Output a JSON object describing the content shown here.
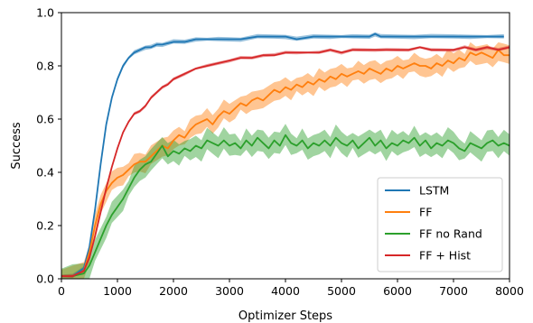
{
  "chart_data": {
    "type": "line",
    "title": "",
    "xlabel": "Optimizer Steps",
    "ylabel": "Success",
    "xlim": [
      0,
      8000
    ],
    "ylim": [
      0,
      1.0
    ],
    "xticks": [
      0,
      1000,
      2000,
      3000,
      4000,
      5000,
      6000,
      7000,
      8000
    ],
    "yticks": [
      0.0,
      0.2,
      0.4,
      0.6,
      0.8,
      1.0
    ],
    "xtick_labels": [
      "0",
      "1000",
      "2000",
      "3000",
      "4000",
      "5000",
      "6000",
      "7000",
      "8000"
    ],
    "ytick_labels": [
      "0.0",
      "0.2",
      "0.4",
      "0.6",
      "0.8",
      "1.0"
    ],
    "grid": false,
    "legend_position": "bottom-right",
    "series": [
      {
        "name": "LSTM",
        "color": "#1f77b4",
        "x": [
          0,
          200,
          400,
          500,
          600,
          700,
          800,
          900,
          1000,
          1100,
          1200,
          1300,
          1400,
          1500,
          1600,
          1700,
          1800,
          2000,
          2200,
          2400,
          2600,
          2800,
          3000,
          3200,
          3500,
          3800,
          4000,
          4200,
          4500,
          4800,
          5000,
          5200,
          5500,
          5600,
          5700,
          6000,
          6300,
          6600,
          7000,
          7300,
          7600,
          7900
        ],
        "y": [
          0.01,
          0.01,
          0.04,
          0.12,
          0.26,
          0.43,
          0.58,
          0.68,
          0.75,
          0.8,
          0.83,
          0.85,
          0.86,
          0.87,
          0.87,
          0.88,
          0.88,
          0.89,
          0.89,
          0.9,
          0.9,
          0.9,
          0.9,
          0.9,
          0.91,
          0.91,
          0.91,
          0.9,
          0.91,
          0.91,
          0.91,
          0.91,
          0.91,
          0.92,
          0.91,
          0.91,
          0.91,
          0.91,
          0.91,
          0.91,
          0.91,
          0.91
        ],
        "band": 0.008
      },
      {
        "name": "FF",
        "color": "#ff7f0e",
        "x": [
          0,
          200,
          400,
          500,
          600,
          700,
          800,
          900,
          1000,
          1100,
          1200,
          1300,
          1400,
          1500,
          1600,
          1700,
          1800,
          1900,
          2000,
          2100,
          2200,
          2300,
          2400,
          2500,
          2600,
          2700,
          2800,
          2900,
          3000,
          3100,
          3200,
          3300,
          3400,
          3500,
          3600,
          3700,
          3800,
          3900,
          4000,
          4100,
          4200,
          4300,
          4400,
          4500,
          4600,
          4700,
          4800,
          4900,
          5000,
          5100,
          5200,
          5300,
          5400,
          5500,
          5600,
          5700,
          5800,
          5900,
          6000,
          6100,
          6200,
          6300,
          6400,
          6500,
          6600,
          6700,
          6800,
          6900,
          7000,
          7100,
          7200,
          7300,
          7400,
          7500,
          7600,
          7700,
          7800,
          7900,
          8000
        ],
        "y": [
          0.01,
          0.01,
          0.03,
          0.1,
          0.2,
          0.28,
          0.33,
          0.36,
          0.38,
          0.39,
          0.41,
          0.43,
          0.44,
          0.44,
          0.46,
          0.48,
          0.5,
          0.49,
          0.52,
          0.54,
          0.53,
          0.56,
          0.58,
          0.59,
          0.6,
          0.58,
          0.61,
          0.63,
          0.62,
          0.64,
          0.66,
          0.65,
          0.67,
          0.68,
          0.67,
          0.69,
          0.71,
          0.7,
          0.72,
          0.71,
          0.73,
          0.72,
          0.74,
          0.73,
          0.75,
          0.74,
          0.76,
          0.75,
          0.77,
          0.76,
          0.77,
          0.78,
          0.77,
          0.79,
          0.78,
          0.77,
          0.79,
          0.78,
          0.8,
          0.79,
          0.8,
          0.81,
          0.8,
          0.8,
          0.79,
          0.81,
          0.8,
          0.82,
          0.81,
          0.83,
          0.82,
          0.85,
          0.84,
          0.85,
          0.84,
          0.83,
          0.86,
          0.84,
          0.84
        ],
        "band": 0.035
      },
      {
        "name": "FF no Rand",
        "color": "#2ca02c",
        "x": [
          0,
          200,
          400,
          500,
          600,
          700,
          800,
          900,
          1000,
          1100,
          1200,
          1300,
          1400,
          1500,
          1600,
          1700,
          1800,
          1900,
          2000,
          2100,
          2200,
          2300,
          2400,
          2500,
          2600,
          2700,
          2800,
          2900,
          3000,
          3100,
          3200,
          3300,
          3400,
          3500,
          3600,
          3700,
          3800,
          3900,
          4000,
          4100,
          4200,
          4300,
          4400,
          4500,
          4600,
          4700,
          4800,
          4900,
          5000,
          5100,
          5200,
          5300,
          5400,
          5500,
          5600,
          5700,
          5800,
          5900,
          6000,
          6100,
          6200,
          6300,
          6400,
          6500,
          6600,
          6700,
          6800,
          6900,
          7000,
          7100,
          7200,
          7300,
          7400,
          7500,
          7600,
          7700,
          7800,
          7900,
          8000
        ],
        "y": [
          0.01,
          0.01,
          0.02,
          0.05,
          0.1,
          0.15,
          0.2,
          0.24,
          0.27,
          0.3,
          0.34,
          0.38,
          0.41,
          0.43,
          0.44,
          0.47,
          0.5,
          0.46,
          0.48,
          0.47,
          0.49,
          0.48,
          0.5,
          0.49,
          0.52,
          0.51,
          0.5,
          0.52,
          0.5,
          0.51,
          0.49,
          0.52,
          0.5,
          0.53,
          0.51,
          0.49,
          0.52,
          0.5,
          0.54,
          0.51,
          0.5,
          0.52,
          0.49,
          0.51,
          0.5,
          0.52,
          0.5,
          0.53,
          0.51,
          0.5,
          0.52,
          0.49,
          0.51,
          0.53,
          0.5,
          0.52,
          0.49,
          0.51,
          0.5,
          0.52,
          0.51,
          0.53,
          0.5,
          0.52,
          0.49,
          0.51,
          0.5,
          0.52,
          0.51,
          0.49,
          0.48,
          0.51,
          0.5,
          0.49,
          0.51,
          0.52,
          0.5,
          0.51,
          0.5
        ],
        "band": 0.04
      },
      {
        "name": "FF + Hist",
        "color": "#d62728",
        "x": [
          0,
          200,
          400,
          500,
          600,
          700,
          800,
          900,
          1000,
          1100,
          1200,
          1300,
          1400,
          1500,
          1600,
          1700,
          1800,
          1900,
          2000,
          2200,
          2400,
          2600,
          2800,
          3000,
          3200,
          3400,
          3600,
          3800,
          4000,
          4200,
          4400,
          4600,
          4800,
          5000,
          5200,
          5400,
          5600,
          5800,
          6000,
          6200,
          6400,
          6600,
          6800,
          7000,
          7200,
          7400,
          7600,
          7800,
          8000
        ],
        "y": [
          0.01,
          0.01,
          0.03,
          0.08,
          0.16,
          0.25,
          0.34,
          0.42,
          0.49,
          0.55,
          0.59,
          0.62,
          0.63,
          0.65,
          0.68,
          0.7,
          0.72,
          0.73,
          0.75,
          0.77,
          0.79,
          0.8,
          0.81,
          0.82,
          0.83,
          0.83,
          0.84,
          0.84,
          0.85,
          0.85,
          0.85,
          0.85,
          0.86,
          0.85,
          0.86,
          0.86,
          0.86,
          0.86,
          0.86,
          0.86,
          0.87,
          0.86,
          0.86,
          0.86,
          0.87,
          0.86,
          0.87,
          0.86,
          0.87
        ],
        "band": 0.006
      }
    ]
  }
}
